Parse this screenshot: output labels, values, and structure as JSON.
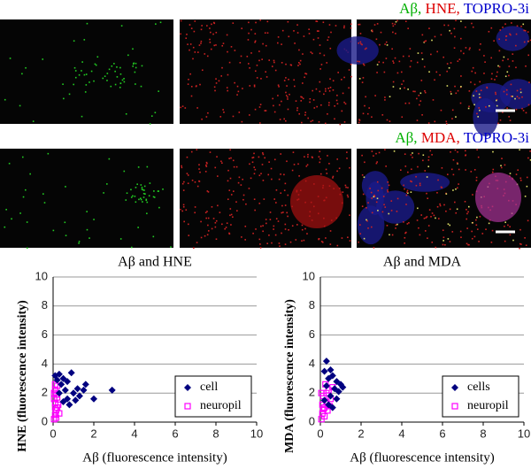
{
  "image_rows": [
    {
      "caption": [
        {
          "text": "Aβ,",
          "color": "#00b000"
        },
        {
          "text": "HNE,",
          "color": "#dd0000"
        },
        {
          "text": "TOPRO-3i",
          "color": "#0000cc"
        }
      ]
    },
    {
      "caption": [
        {
          "text": "Aβ,",
          "color": "#00b000"
        },
        {
          "text": "MDA,",
          "color": "#dd0000"
        },
        {
          "text": "TOPRO-3i",
          "color": "#0000cc"
        }
      ]
    }
  ],
  "chart_data": [
    {
      "type": "scatter",
      "title": "Aβ and HNE",
      "x_label": "Aβ (fluorescence intensity)",
      "y_label": "HNE (fluorescence intensity)",
      "xlim": [
        0,
        10
      ],
      "ylim": [
        0,
        10
      ],
      "xticks": [
        0,
        2,
        4,
        6,
        8,
        10
      ],
      "yticks": [
        0,
        2,
        4,
        6,
        8,
        10
      ],
      "grid": true,
      "legend_position": "lower right",
      "series": [
        {
          "name": "cell",
          "color": "#000080",
          "marker": "diamond",
          "x": [
            0.1,
            0.2,
            0.3,
            0.4,
            0.5,
            0.6,
            0.7,
            0.8,
            0.9,
            1.0,
            1.1,
            1.2,
            1.3,
            1.6,
            2.0,
            2.9,
            0.5,
            0.7,
            0.3,
            1.5
          ],
          "values": [
            3.2,
            2.9,
            3.3,
            2.6,
            3.0,
            2.2,
            1.6,
            1.2,
            3.4,
            2.0,
            1.5,
            2.3,
            1.8,
            2.6,
            1.6,
            2.2,
            1.4,
            2.8,
            2.0,
            2.2
          ]
        },
        {
          "name": "neuropil",
          "color": "#ff00ff",
          "marker": "square",
          "x": [
            0.05,
            0.1,
            0.15,
            0.2,
            0.1,
            0.05,
            0.25,
            0.15,
            0.1,
            0.2,
            0.3,
            0.05,
            0.15,
            0.1,
            0.2,
            0.1
          ],
          "values": [
            0.2,
            0.5,
            0.8,
            1.0,
            1.3,
            1.6,
            1.2,
            1.9,
            2.2,
            2.5,
            0.6,
            2.0,
            0.3,
            1.0,
            1.7,
            2.6
          ]
        }
      ]
    },
    {
      "type": "scatter",
      "title": "Aβ and MDA",
      "x_label": "Aβ (fluorescence intensity)",
      "y_label": "MDA (fluorescence intensity)",
      "xlim": [
        0,
        10
      ],
      "ylim": [
        0,
        10
      ],
      "xticks": [
        0,
        2,
        4,
        6,
        8,
        10
      ],
      "yticks": [
        0,
        2,
        4,
        6,
        8,
        10
      ],
      "grid": true,
      "legend_position": "lower right",
      "series": [
        {
          "name": "cells",
          "color": "#000080",
          "marker": "diamond",
          "x": [
            0.3,
            0.2,
            0.5,
            0.4,
            0.6,
            0.8,
            1.0,
            0.7,
            0.9,
            0.3,
            0.5,
            0.2,
            0.4,
            0.6,
            1.1,
            0.8
          ],
          "values": [
            4.2,
            3.5,
            3.6,
            3.0,
            3.2,
            2.8,
            2.6,
            2.3,
            2.1,
            2.5,
            1.8,
            1.5,
            1.2,
            1.0,
            2.4,
            1.6
          ]
        },
        {
          "name": "neuropil",
          "color": "#ff00ff",
          "marker": "square",
          "x": [
            0.05,
            0.1,
            0.2,
            0.3,
            0.15,
            0.4,
            0.25,
            0.1,
            0.5,
            0.2,
            0.35,
            0.05,
            0.6,
            0.15,
            0.3,
            0.45
          ],
          "values": [
            0.2,
            0.6,
            1.0,
            1.4,
            1.8,
            2.2,
            2.6,
            1.2,
            1.6,
            0.4,
            0.8,
            2.0,
            2.4,
            0.9,
            2.0,
            1.1
          ]
        }
      ]
    }
  ]
}
